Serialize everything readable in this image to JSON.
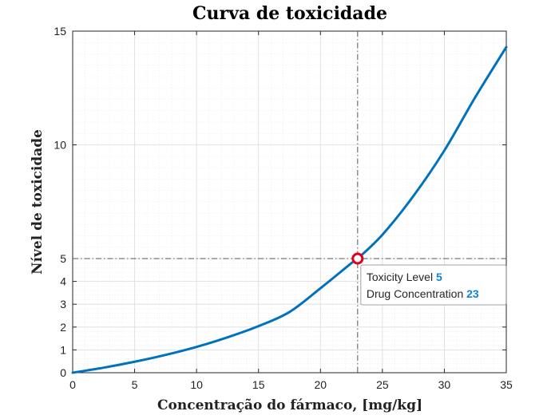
{
  "chart_data": {
    "type": "line",
    "title": "Curva de toxicidade",
    "xlabel": "Concentração do fármaco, [mg/kg]",
    "ylabel": "Nível de toxicidade",
    "xlim": [
      0,
      35
    ],
    "ylim": [
      0,
      15
    ],
    "x_ticks": [
      "0",
      "5",
      "10",
      "15",
      "20",
      "25",
      "30",
      "35"
    ],
    "y_ticks": [
      "0",
      "1",
      "2",
      "3",
      "4",
      "5",
      "10",
      "15"
    ],
    "grid": true,
    "minor_grid": true,
    "series": [
      {
        "color": "#0072bd",
        "x": [
          0,
          2.5,
          5,
          7.5,
          10,
          12.5,
          15,
          17.5,
          20,
          22.5,
          23,
          25,
          27.5,
          30,
          32.5,
          35
        ],
        "y": [
          0,
          0.22,
          0.48,
          0.78,
          1.13,
          1.55,
          2.04,
          2.66,
          3.7,
          4.8,
          5.0,
          6.05,
          7.75,
          9.75,
          12.1,
          14.3
        ]
      }
    ],
    "highlight": {
      "x": 23,
      "y": 5,
      "marker_color": "#e3001b",
      "crosshair_color": "#555555",
      "tooltip": [
        {
          "label": "Toxicity Level",
          "value": "5"
        },
        {
          "label": "Drug Concentration",
          "value": "23"
        }
      ]
    }
  }
}
